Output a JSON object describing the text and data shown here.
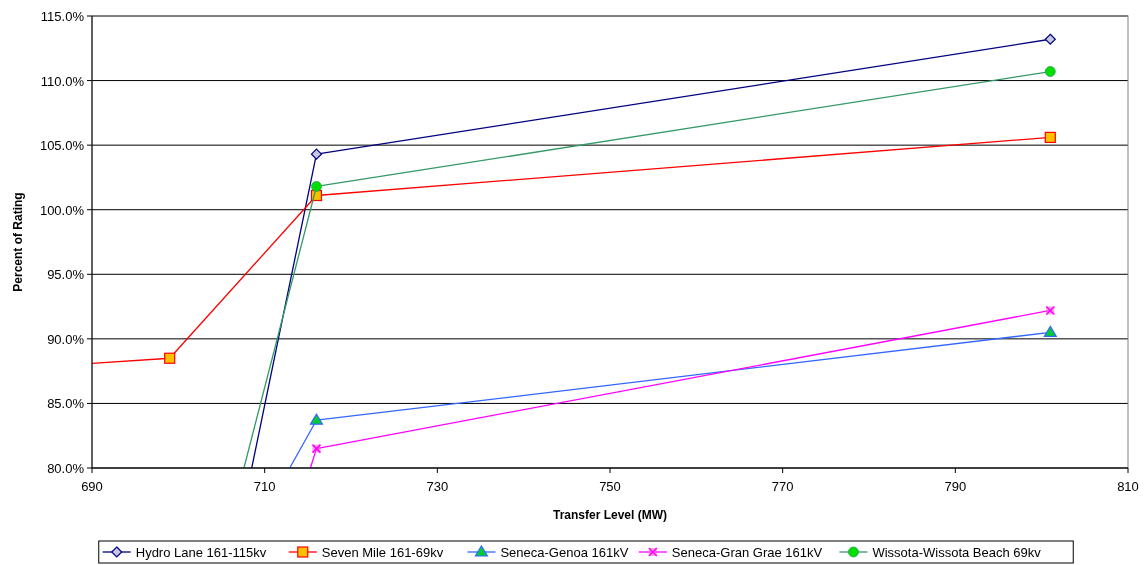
{
  "chart_data": {
    "type": "line",
    "xlabel": "Transfer Level (MW)",
    "ylabel": "Percent of Rating",
    "xlim": [
      690,
      810
    ],
    "xticks": [
      690,
      710,
      730,
      750,
      770,
      790,
      810
    ],
    "ylim": [
      80,
      115
    ],
    "yticks": [
      {
        "value": 80,
        "label": "80.0%"
      },
      {
        "value": 85,
        "label": "85.0%"
      },
      {
        "value": 90,
        "label": "90.0%"
      },
      {
        "value": 95,
        "label": "95.0%"
      },
      {
        "value": 100,
        "label": "100.0%"
      },
      {
        "value": 105,
        "label": "105.0%"
      },
      {
        "value": 110,
        "label": "110.0%"
      },
      {
        "value": 115,
        "label": "115.0%"
      }
    ],
    "grid": "y",
    "legend": "bottom",
    "series": [
      {
        "name": "Hydro Lane 161-115kv",
        "color": "#000080",
        "marker": "diamond",
        "x": [
          708.5,
          716,
          801
        ],
        "values": [
          80,
          104.3,
          113.2
        ]
      },
      {
        "name": "Seven Mile 161-69kv",
        "color": "#ff0000",
        "marker": "square",
        "x": [
          690,
          699,
          716,
          801
        ],
        "values": [
          88.1,
          88.5,
          101.1,
          105.6
        ]
      },
      {
        "name": "Seneca-Genoa 161kV",
        "color": "#3366ff",
        "marker": "triangle",
        "x": [
          712.9,
          716,
          801
        ],
        "values": [
          80,
          83.7,
          90.5
        ]
      },
      {
        "name": "Seneca-Gran Grae 161kV",
        "color": "#ff00ff",
        "marker": "cross",
        "x": [
          715.3,
          716,
          801
        ],
        "values": [
          80,
          81.5,
          92.2
        ]
      },
      {
        "name": "Wissota-Wissota Beach 69kv",
        "color": "#339966",
        "marker": "circle",
        "x": [
          707.6,
          716,
          801
        ],
        "values": [
          80,
          101.8,
          110.7
        ]
      }
    ]
  }
}
